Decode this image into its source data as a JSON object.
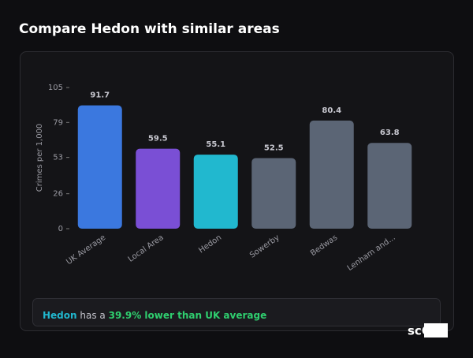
{
  "header": {
    "title": "Compare Hedon with similar areas"
  },
  "chart_data": {
    "type": "bar",
    "y_label": "Crimes per 1,000",
    "categories": [
      "UK Average",
      "Local Area",
      "Hedon",
      "Sowerby",
      "Bedwas",
      "Lenham and..."
    ],
    "values": [
      91.7,
      59.5,
      55.1,
      52.5,
      80.4,
      63.8
    ],
    "colors": [
      "#3b78df",
      "#7a4fd5",
      "#21b8cf",
      "#5b6575",
      "#5b6575",
      "#5b6575"
    ],
    "ylim": [
      0,
      105
    ],
    "yticks": [
      0,
      26,
      53,
      79,
      105
    ],
    "grid": false
  },
  "footer": {
    "area": "Hedon",
    "middle": "has a",
    "highlight": "39.9% lower than UK average"
  },
  "logo": "scOS"
}
